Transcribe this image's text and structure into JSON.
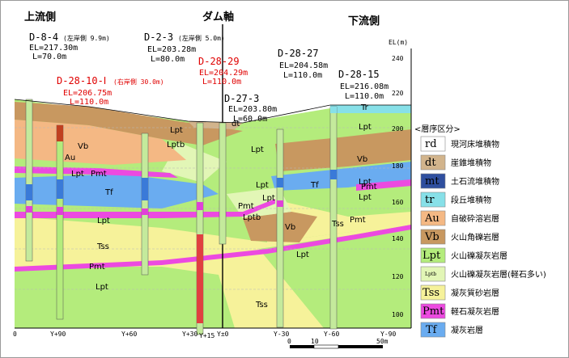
{
  "titles": {
    "upstream": "上流側",
    "dam_axis": "ダム軸",
    "downstream": "下流側"
  },
  "el_axis": {
    "unit": "EL(m)",
    "ticks": [
      "240",
      "220",
      "200",
      "180",
      "160",
      "140",
      "120",
      "100"
    ]
  },
  "x_axis": {
    "labels": [
      "0",
      "Y+90",
      "Y+60",
      "Y+30",
      "Y+15",
      "Y±0",
      "Y-30",
      "Y-60",
      "Y-90"
    ]
  },
  "scale_bar": {
    "ticks": [
      "0",
      "10",
      "50m"
    ]
  },
  "boreholes": [
    {
      "name": "D-8-4",
      "note": "(左岸側 9.9m)",
      "el": "EL=217.30m",
      "len": "L=70.0m",
      "color": "#000000"
    },
    {
      "name": "D-2-3",
      "note": "(左岸側 5.0m)",
      "el": "EL=203.28m",
      "len": "L=80.0m",
      "color": "#000000"
    },
    {
      "name": "D-28-29",
      "note": "",
      "el": "EL=204.29m",
      "len": "L=110.0m",
      "color": "#e00000"
    },
    {
      "name": "D-28-10-Ⅰ",
      "note": "(右岸側 30.0m)",
      "el": "EL=206.75m",
      "len": "L=110.0m",
      "color": "#e00000"
    },
    {
      "name": "D-28-27",
      "note": "",
      "el": "EL=204.58m",
      "len": "L=110.0m",
      "color": "#000000"
    },
    {
      "name": "D-27-3",
      "note": "",
      "el": "EL=203.80m",
      "len": "L=60.0m",
      "color": "#000000"
    },
    {
      "name": "D-28-15",
      "note": "",
      "el": "EL=216.08m",
      "len": "L=110.0m",
      "color": "#000000"
    }
  ],
  "geo_labels": [
    "dt",
    "Vb",
    "Au",
    "Lpt",
    "Pmt",
    "Tf",
    "Lpt",
    "Tss",
    "Pmt",
    "Lpt",
    "Lpt",
    "Lptb",
    "Lpt",
    "Lpt",
    "Pmt",
    "Lptb",
    "Vb",
    "Lpt",
    "Tss",
    "Lpt",
    "Tss",
    "Tf",
    "Lpt",
    "Vb",
    "Lpt",
    "Pmt",
    "Lpt",
    "Pmt",
    "Tr"
  ],
  "legend": {
    "title": "<層序区分>",
    "items": [
      {
        "code": "rd",
        "name": "現河床堆積物",
        "color": "#ffffff"
      },
      {
        "code": "dt",
        "name": "崖錐堆積物",
        "color": "#d2b48c"
      },
      {
        "code": "mt",
        "name": "土石流堆積物",
        "color": "#2f4f9f"
      },
      {
        "code": "tr",
        "name": "段丘堆積物",
        "color": "#87e0e8"
      },
      {
        "code": "Au",
        "name": "自破砕溶岩層",
        "color": "#f4b884"
      },
      {
        "code": "Vb",
        "name": "火山角礫岩層",
        "color": "#c89860"
      },
      {
        "code": "Lpt",
        "name": "火山礫凝灰岩層",
        "color": "#b4ec7c"
      },
      {
        "code": "Lptb",
        "name": "火山礫凝灰岩層(軽石多い)",
        "color": "#e2f6b6"
      },
      {
        "code": "Tss",
        "name": "凝灰質砂岩層",
        "color": "#f6f29a"
      },
      {
        "code": "Pmt",
        "name": "軽石凝灰岩層",
        "color": "#ec4ae0"
      },
      {
        "code": "Tf",
        "name": "凝灰岩層",
        "color": "#6aacf0"
      }
    ]
  }
}
